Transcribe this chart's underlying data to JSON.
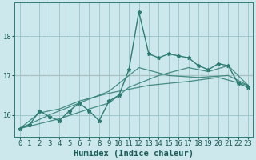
{
  "title": "",
  "xlabel": "Humidex (Indice chaleur)",
  "bg_color": "#cce8ec",
  "grid_color": "#a0c8cc",
  "line_color": "#2e7d72",
  "red_line_color": "#cc4444",
  "xlim": [
    -0.5,
    23.5
  ],
  "ylim": [
    15.45,
    18.85
  ],
  "yticks": [
    16,
    17,
    18
  ],
  "xticks": [
    0,
    1,
    2,
    3,
    4,
    5,
    6,
    7,
    8,
    9,
    10,
    11,
    12,
    13,
    14,
    15,
    16,
    17,
    18,
    19,
    20,
    21,
    22,
    23
  ],
  "red_line_y": 17.0,
  "font_family": "monospace",
  "tick_fontsize": 6.5,
  "label_fontsize": 7.5,
  "series1": [
    [
      0,
      15.65
    ],
    [
      1,
      15.75
    ],
    [
      2,
      16.1
    ],
    [
      3,
      15.95
    ],
    [
      4,
      15.85
    ],
    [
      5,
      16.1
    ],
    [
      6,
      16.3
    ],
    [
      7,
      16.1
    ],
    [
      8,
      15.85
    ],
    [
      9,
      16.35
    ],
    [
      10,
      16.5
    ],
    [
      11,
      17.15
    ],
    [
      12,
      18.62
    ],
    [
      13,
      17.55
    ],
    [
      14,
      17.45
    ],
    [
      15,
      17.55
    ],
    [
      16,
      17.5
    ],
    [
      17,
      17.45
    ],
    [
      18,
      17.25
    ],
    [
      19,
      17.15
    ],
    [
      20,
      17.3
    ],
    [
      21,
      17.25
    ],
    [
      22,
      16.8
    ],
    [
      23,
      16.7
    ]
  ],
  "series2": [
    [
      0,
      15.65
    ],
    [
      2,
      16.05
    ],
    [
      4,
      16.15
    ],
    [
      6,
      16.35
    ],
    [
      9,
      16.55
    ],
    [
      13,
      16.75
    ],
    [
      17,
      16.85
    ],
    [
      20,
      16.95
    ],
    [
      23,
      16.75
    ]
  ],
  "series3": [
    [
      0,
      15.65
    ],
    [
      3,
      16.0
    ],
    [
      6,
      16.3
    ],
    [
      9,
      16.6
    ],
    [
      12,
      17.2
    ],
    [
      15,
      17.0
    ],
    [
      18,
      16.95
    ],
    [
      21,
      17.0
    ],
    [
      23,
      16.75
    ]
  ],
  "series4": [
    [
      0,
      15.65
    ],
    [
      4,
      15.9
    ],
    [
      7,
      16.15
    ],
    [
      9,
      16.3
    ],
    [
      11,
      16.7
    ],
    [
      14,
      17.0
    ],
    [
      17,
      17.2
    ],
    [
      19,
      17.1
    ],
    [
      21,
      17.25
    ],
    [
      23,
      16.75
    ]
  ]
}
